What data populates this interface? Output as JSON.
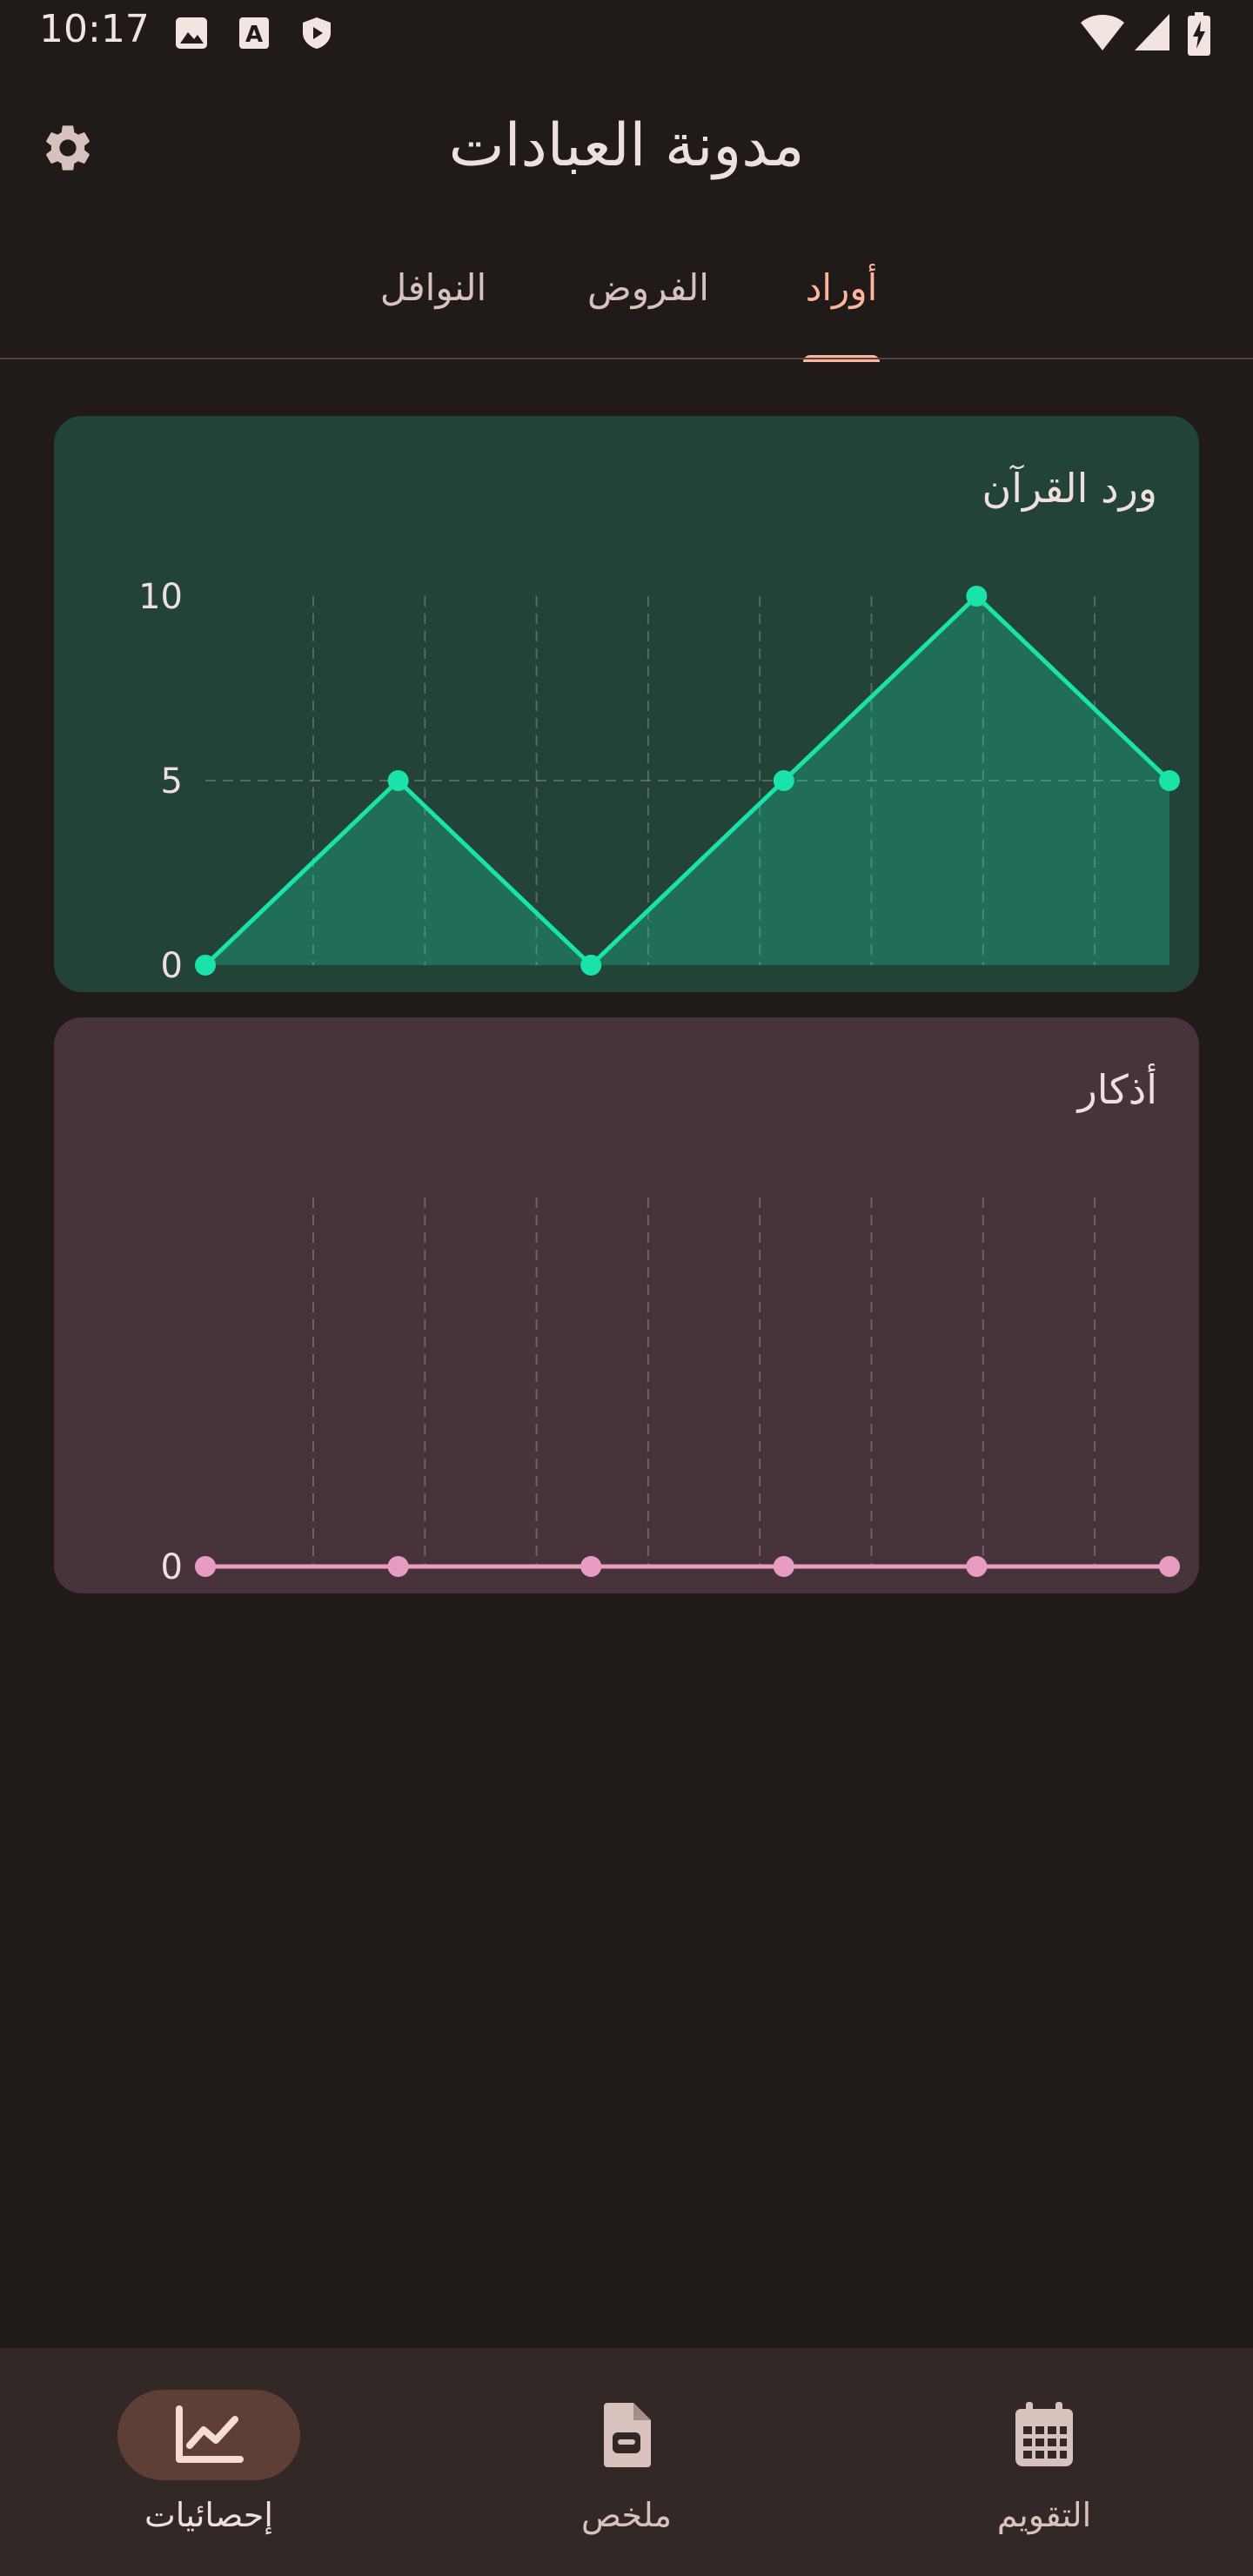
{
  "status_bar": {
    "time": "10:17",
    "icons_left": [
      "image-icon",
      "a-box-icon",
      "shield-play-icon"
    ],
    "icons_right": [
      "wifi-icon",
      "signal-icon",
      "battery-charging-icon"
    ]
  },
  "app_bar": {
    "title": "مدونة العبادات",
    "settings_icon": "gear-icon"
  },
  "tabs": [
    {
      "label": "النوافل",
      "active": false
    },
    {
      "label": "الفروض",
      "active": false
    },
    {
      "label": "أوراد",
      "active": true
    }
  ],
  "colors": {
    "background": "#201a19",
    "accent": "#ffb59d",
    "quran_line": "#19e3a9",
    "adhkar_line": "#e89cc2"
  },
  "chart_data": [
    {
      "type": "area",
      "title": "ورد القرآن",
      "x": [
        1,
        2,
        3,
        4,
        5,
        6
      ],
      "values": [
        0,
        5,
        0,
        5,
        10,
        5
      ],
      "yticks": [
        0,
        5,
        10
      ],
      "ylim": [
        0,
        10
      ],
      "grid": true,
      "color": "#19e3a9"
    },
    {
      "type": "line",
      "title": "أذكار",
      "x": [
        1,
        2,
        3,
        4,
        5,
        6
      ],
      "values": [
        0,
        0,
        0,
        0,
        0,
        0
      ],
      "yticks": [
        0
      ],
      "ylim": [
        0,
        10
      ],
      "grid": true,
      "color": "#e89cc2"
    }
  ],
  "bottom_nav": [
    {
      "label": "إحصائيات",
      "icon": "chart-line-icon",
      "active": true
    },
    {
      "label": "ملخص",
      "icon": "document-icon",
      "active": false
    },
    {
      "label": "التقويم",
      "icon": "calendar-icon",
      "active": false
    }
  ]
}
